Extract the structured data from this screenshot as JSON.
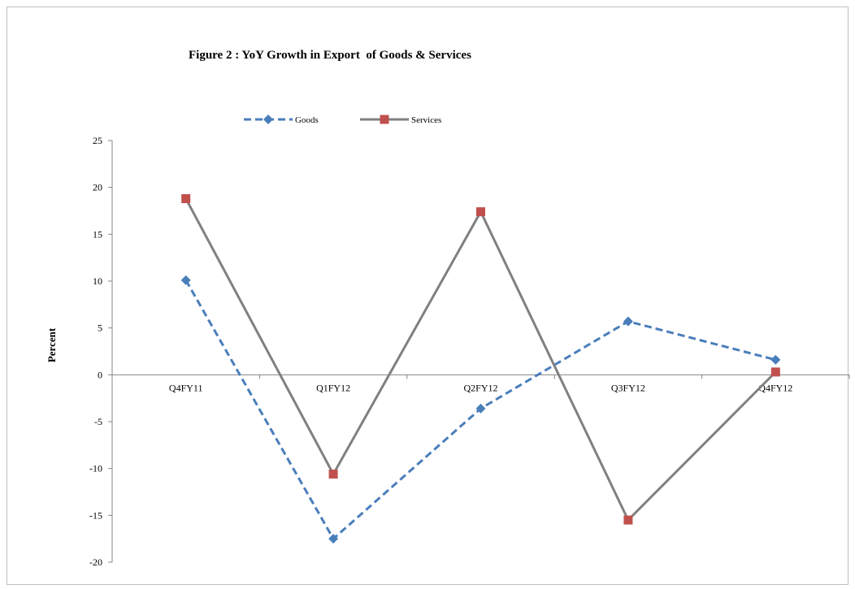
{
  "chart_data": {
    "type": "line",
    "title": "Figure 2 : YoY Growth in Export  of Goods & Services",
    "xlabel": "",
    "ylabel": "Percent",
    "categories": [
      "Q4FY11",
      "Q1FY12",
      "Q2FY12",
      "Q3FY12",
      "Q4FY12"
    ],
    "ylim": [
      -20,
      25
    ],
    "yticks": [
      25,
      20,
      15,
      10,
      5,
      0,
      -5,
      -10,
      -15,
      -20
    ],
    "grid": false,
    "legend_position": "top",
    "series": [
      {
        "name": "Goods",
        "values": [
          10.1,
          -17.5,
          -3.6,
          5.7,
          1.6
        ],
        "color": "#4a7ebb",
        "dash": "dashed",
        "marker": "diamond"
      },
      {
        "name": "Services",
        "values": [
          18.8,
          -10.6,
          17.4,
          -15.5,
          0.3
        ],
        "color": "#808080",
        "dash": "solid",
        "marker": "square",
        "marker_color": "#c0504d"
      }
    ]
  }
}
